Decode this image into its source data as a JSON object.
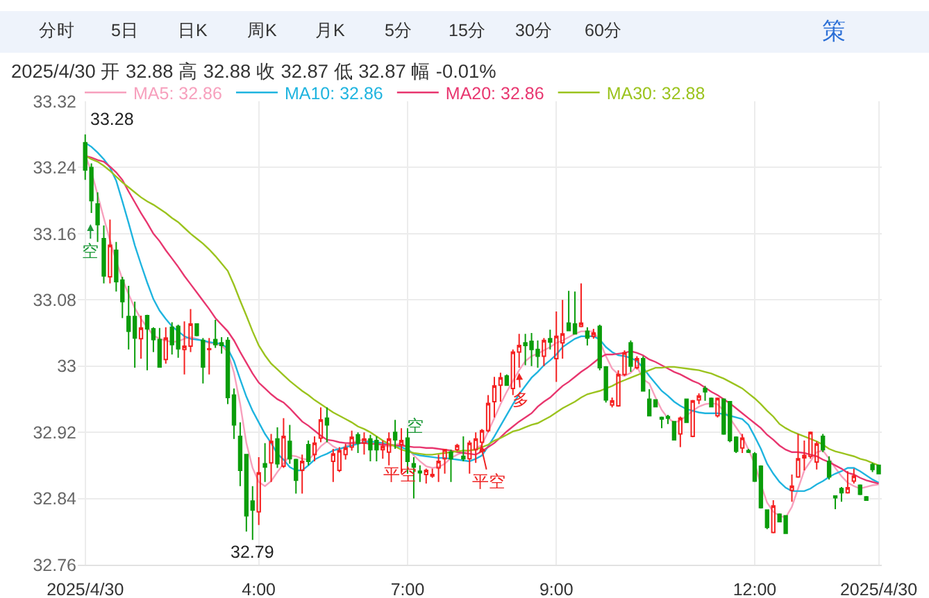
{
  "chart_data": {
    "type": "candlestick",
    "subtitle": "2025/4/30 开 32.88 高 32.88 收 32.87 低 32.87 幅 -0.01%",
    "categories": [
      "2025/4/30",
      null,
      null,
      null,
      null,
      null,
      null,
      null,
      null,
      null,
      null,
      null,
      null,
      null,
      null,
      null,
      null,
      null,
      null,
      null,
      null,
      null,
      null,
      null,
      null,
      null,
      null,
      null,
      "4:00",
      null,
      null,
      null,
      null,
      null,
      null,
      null,
      null,
      null,
      null,
      null,
      null,
      null,
      null,
      null,
      null,
      null,
      null,
      null,
      null,
      null,
      null,
      null,
      "7:00",
      null,
      null,
      null,
      null,
      null,
      null,
      null,
      null,
      null,
      null,
      null,
      null,
      null,
      null,
      null,
      null,
      null,
      null,
      null,
      null,
      null,
      null,
      null,
      "9:00",
      null,
      null,
      null,
      null,
      null,
      null,
      null,
      null,
      null,
      null,
      null,
      null,
      null,
      null,
      null,
      null,
      null,
      null,
      null,
      null,
      null,
      null,
      null,
      null,
      null,
      null,
      null,
      null,
      null,
      null,
      null,
      "12:00",
      null,
      null,
      null,
      null,
      null,
      null,
      null,
      null,
      null,
      null,
      null,
      null,
      null,
      null,
      null,
      null,
      null,
      null,
      null,
      "2025/4/30"
    ],
    "ohlc": [
      [
        33.27,
        33.28,
        33.225,
        33.237
      ],
      [
        33.24,
        33.245,
        33.185,
        33.2
      ],
      [
        33.196,
        33.21,
        33.15,
        33.171
      ],
      [
        33.154,
        33.17,
        33.1,
        33.109
      ],
      [
        33.108,
        33.177,
        33.1,
        33.146
      ],
      [
        33.14,
        33.15,
        33.09,
        33.102
      ],
      [
        33.104,
        33.108,
        33.058,
        33.078
      ],
      [
        33.06,
        33.097,
        33.02,
        33.042
      ],
      [
        33.06,
        33.078,
        32.998,
        33.034
      ],
      [
        33.033,
        33.061,
        33.009,
        33.046
      ],
      [
        33.061,
        33.062,
        32.995,
        33.045
      ],
      [
        33.045,
        33.047,
        33.017,
        33.032
      ],
      [
        33.032,
        33.046,
        32.998,
        32.999
      ],
      [
        33.008,
        33.047,
        33.003,
        33.034
      ],
      [
        33.047,
        33.053,
        33.014,
        33.026
      ],
      [
        33.048,
        33.05,
        33.01,
        33.021
      ],
      [
        33.02,
        33.054,
        32.99,
        33.024
      ],
      [
        33.024,
        33.069,
        33.017,
        33.051
      ],
      [
        33.051,
        33.051,
        33.036,
        33.037
      ],
      [
        33.031,
        33.034,
        32.979,
        32.999
      ],
      [
        33.02,
        33.034,
        32.99,
        33.021
      ],
      [
        33.032,
        33.056,
        33.022,
        33.026
      ],
      [
        33.028,
        33.035,
        33.015,
        33.025
      ],
      [
        33.031,
        33.035,
        32.954,
        32.962
      ],
      [
        32.965,
        32.973,
        32.912,
        32.929
      ],
      [
        32.915,
        32.932,
        32.855,
        32.874
      ],
      [
        32.893,
        32.893,
        32.8,
        32.819
      ],
      [
        32.837,
        32.855,
        32.79,
        32.826
      ],
      [
        32.824,
        32.89,
        32.808,
        32.871
      ],
      [
        32.882,
        32.907,
        32.86,
        32.878
      ],
      [
        32.883,
        32.918,
        32.86,
        32.909
      ],
      [
        32.912,
        32.926,
        32.877,
        32.882
      ],
      [
        32.879,
        32.937,
        32.877,
        32.915
      ],
      [
        32.909,
        32.929,
        32.882,
        32.888
      ],
      [
        32.887,
        32.888,
        32.846,
        32.862
      ],
      [
        32.874,
        32.893,
        32.846,
        32.885
      ],
      [
        32.905,
        32.91,
        32.88,
        32.885
      ],
      [
        32.893,
        32.915,
        32.885,
        32.907
      ],
      [
        32.913,
        32.95,
        32.908,
        32.935
      ],
      [
        32.937,
        32.95,
        32.908,
        32.929
      ],
      [
        32.885,
        32.9,
        32.86,
        32.894
      ],
      [
        32.874,
        32.902,
        32.872,
        32.898
      ],
      [
        32.893,
        32.906,
        32.887,
        32.901
      ],
      [
        32.902,
        32.922,
        32.898,
        32.914
      ],
      [
        32.917,
        32.92,
        32.895,
        32.907
      ],
      [
        32.907,
        32.92,
        32.893,
        32.912
      ],
      [
        32.912,
        32.917,
        32.885,
        32.899
      ],
      [
        32.91,
        32.915,
        32.885,
        32.899
      ],
      [
        32.899,
        32.91,
        32.888,
        32.903
      ],
      [
        32.896,
        32.92,
        32.88,
        32.912
      ],
      [
        32.92,
        32.935,
        32.9,
        32.911
      ],
      [
        32.905,
        32.925,
        32.87,
        32.91
      ],
      [
        32.913,
        32.925,
        32.87,
        32.885
      ],
      [
        32.882,
        32.89,
        32.84,
        32.878
      ],
      [
        32.873,
        32.88,
        32.86,
        32.871
      ],
      [
        32.869,
        32.876,
        32.858,
        32.874
      ],
      [
        32.867,
        32.876,
        32.865,
        32.869
      ],
      [
        32.877,
        32.893,
        32.86,
        32.885
      ],
      [
        32.888,
        32.9,
        32.87,
        32.899
      ],
      [
        32.896,
        32.899,
        32.86,
        32.888
      ],
      [
        32.899,
        32.906,
        32.897,
        32.904
      ],
      [
        32.891,
        32.915,
        32.885,
        32.888
      ],
      [
        32.888,
        32.91,
        32.87,
        32.907
      ],
      [
        32.899,
        32.92,
        32.883,
        32.912
      ],
      [
        32.908,
        32.924,
        32.9,
        32.922
      ],
      [
        32.922,
        32.965,
        32.92,
        32.955
      ],
      [
        32.957,
        32.987,
        32.938,
        32.976
      ],
      [
        32.977,
        32.992,
        32.957,
        32.986
      ],
      [
        32.988,
        32.99,
        32.976,
        32.977
      ],
      [
        32.973,
        33.02,
        32.965,
        33.017
      ],
      [
        33.017,
        33.039,
        32.998,
        33.025
      ],
      [
        33.028,
        33.039,
        33.001,
        33.025
      ],
      [
        33.03,
        33.04,
        33.0,
        33.02
      ],
      [
        33.02,
        33.031,
        32.998,
        33.012
      ],
      [
        33.012,
        33.034,
        33.0,
        33.031
      ],
      [
        33.033,
        33.044,
        33.02,
        33.029
      ],
      [
        33.009,
        33.066,
        32.981,
        33.036
      ],
      [
        33.028,
        33.08,
        33.009,
        33.039
      ],
      [
        33.052,
        33.091,
        33.042,
        33.043
      ],
      [
        33.051,
        33.09,
        33.039,
        33.039
      ],
      [
        33.048,
        33.1,
        33.047,
        33.052
      ],
      [
        33.042,
        33.047,
        33.025,
        33.034
      ],
      [
        33.036,
        33.045,
        33.033,
        33.04
      ],
      [
        33.048,
        33.05,
        32.995,
        32.998
      ],
      [
        32.999,
        33.0,
        32.956,
        32.959
      ],
      [
        32.953,
        32.962,
        32.95,
        32.958
      ],
      [
        32.952,
        32.995,
        32.951,
        32.99
      ],
      [
        32.99,
        33.019,
        32.988,
        33.016
      ],
      [
        33.028,
        33.031,
        32.993,
        33.0
      ],
      [
        32.998,
        33.012,
        32.996,
        33.009
      ],
      [
        33.009,
        33.012,
        32.97,
        32.97
      ],
      [
        32.96,
        32.972,
        32.94,
        32.94
      ],
      [
        32.959,
        32.96,
        32.95,
        32.951
      ],
      [
        32.938,
        32.939,
        32.925,
        32.936
      ],
      [
        32.939,
        32.941,
        32.93,
        32.937
      ],
      [
        32.933,
        32.933,
        32.91,
        32.911
      ],
      [
        32.918,
        32.939,
        32.902,
        32.937
      ],
      [
        32.96,
        32.96,
        32.932,
        32.932
      ],
      [
        32.915,
        32.959,
        32.914,
        32.958
      ],
      [
        32.959,
        32.967,
        32.954,
        32.964
      ],
      [
        32.973,
        32.976,
        32.958,
        32.969
      ],
      [
        32.961,
        32.962,
        32.95,
        32.951
      ],
      [
        32.94,
        32.962,
        32.938,
        32.961
      ],
      [
        32.96,
        32.961,
        32.917,
        32.918
      ],
      [
        32.957,
        32.957,
        32.908,
        32.91
      ],
      [
        32.914,
        32.915,
        32.895,
        32.897
      ],
      [
        32.901,
        32.918,
        32.895,
        32.913
      ],
      [
        32.898,
        32.9,
        32.895,
        32.896
      ],
      [
        32.894,
        32.896,
        32.86,
        32.861
      ],
      [
        32.879,
        32.88,
        32.828,
        32.829
      ],
      [
        32.826,
        32.826,
        32.803,
        32.805
      ],
      [
        32.799,
        32.838,
        32.798,
        32.831
      ],
      [
        32.821,
        32.822,
        32.812,
        32.812
      ],
      [
        32.819,
        32.82,
        32.797,
        32.798
      ],
      [
        32.85,
        32.869,
        32.836,
        32.855
      ],
      [
        32.866,
        32.918,
        32.865,
        32.888
      ],
      [
        32.889,
        32.91,
        32.874,
        32.892
      ],
      [
        32.891,
        32.921,
        32.888,
        32.92
      ],
      [
        32.884,
        32.909,
        32.875,
        32.906
      ],
      [
        32.915,
        32.918,
        32.896,
        32.899
      ],
      [
        32.885,
        32.891,
        32.863,
        32.866
      ],
      [
        32.843,
        32.843,
        32.827,
        32.841
      ],
      [
        32.852,
        32.854,
        32.836,
        32.847
      ],
      [
        32.847,
        32.873,
        32.846,
        32.853
      ],
      [
        32.861,
        32.876,
        32.858,
        32.867
      ],
      [
        32.856,
        32.857,
        32.844,
        32.845
      ],
      [
        32.842,
        32.843,
        32.838,
        32.838
      ],
      [
        32.881,
        32.883,
        32.872,
        32.875
      ],
      [
        32.88,
        32.88,
        32.87,
        32.87
      ]
    ],
    "series": [
      {
        "name": "MA5: 32.86",
        "type": "line",
        "color": "#f7a0bd",
        "values": [
          33.255,
          33.235,
          33.207,
          33.179,
          33.152,
          33.127,
          33.105,
          33.087,
          33.07,
          33.057,
          33.047,
          33.037,
          33.033,
          33.031,
          33.029,
          33.03,
          33.033,
          33.035,
          33.033,
          33.03,
          33.028,
          33.027,
          33.025,
          33.017,
          32.992,
          32.954,
          32.907,
          32.877,
          32.86,
          32.855,
          32.861,
          32.872,
          32.882,
          32.892,
          32.891,
          32.888,
          32.887,
          32.894,
          32.903,
          32.909,
          32.903,
          32.899,
          32.903,
          32.907,
          32.91,
          32.911,
          32.909,
          32.907,
          32.904,
          32.903,
          32.905,
          32.907,
          32.901,
          32.892,
          32.885,
          32.879,
          32.877,
          32.878,
          32.882,
          32.889,
          32.893,
          32.896,
          32.898,
          32.9,
          32.905,
          32.921,
          32.937,
          32.954,
          32.969,
          32.982,
          32.995,
          33.006,
          33.012,
          33.015,
          33.019,
          33.023,
          33.028,
          33.031,
          33.035,
          33.039,
          33.042,
          33.042,
          33.042,
          33.03,
          33.012,
          32.997,
          32.99,
          32.988,
          32.992,
          33.0,
          32.984,
          32.979,
          32.962,
          32.947,
          32.937,
          32.932,
          32.934,
          32.94,
          32.946,
          32.951,
          32.954,
          32.955,
          32.954,
          32.946,
          32.937,
          32.926,
          32.915,
          32.899,
          32.882,
          32.857,
          32.835,
          32.824,
          32.819,
          32.817,
          32.83,
          32.852,
          32.874,
          32.885,
          32.896,
          32.898,
          32.888,
          32.877,
          32.867,
          32.859,
          32.855,
          32.852,
          32.854,
          32.856,
          32.857
        ]
      },
      {
        "name": "MA10: 32.86",
        "type": "line",
        "color": "#1fb4df",
        "values": [
          33.27,
          33.265,
          33.258,
          33.25,
          33.24,
          33.224,
          33.199,
          33.173,
          33.146,
          33.123,
          33.101,
          33.081,
          33.067,
          33.057,
          33.048,
          33.042,
          33.036,
          33.033,
          33.032,
          33.031,
          33.029,
          33.028,
          33.027,
          33.021,
          33.006,
          32.984,
          32.963,
          32.946,
          32.932,
          32.918,
          32.907,
          32.894,
          32.887,
          32.878,
          32.874,
          32.874,
          32.88,
          32.887,
          32.891,
          32.894,
          32.898,
          32.9,
          32.902,
          32.904,
          32.906,
          32.908,
          32.909,
          32.908,
          32.907,
          32.905,
          32.904,
          32.902,
          32.899,
          32.894,
          32.892,
          32.891,
          32.89,
          32.889,
          32.889,
          32.888,
          32.887,
          32.886,
          32.885,
          32.888,
          32.892,
          32.903,
          32.915,
          32.928,
          32.941,
          32.954,
          32.966,
          32.976,
          32.986,
          32.993,
          33.001,
          33.007,
          33.014,
          33.023,
          33.028,
          33.033,
          33.036,
          33.036,
          33.036,
          33.032,
          33.023,
          33.017,
          33.013,
          33.012,
          33.01,
          33.006,
          32.998,
          32.988,
          32.979,
          32.97,
          32.964,
          32.957,
          32.952,
          32.948,
          32.946,
          32.944,
          32.943,
          32.943,
          32.943,
          32.942,
          32.94,
          32.938,
          32.936,
          32.929,
          32.915,
          32.9,
          32.882,
          32.87,
          32.86,
          32.853,
          32.849,
          32.849,
          32.849,
          32.852,
          32.857,
          32.861,
          32.866,
          32.87,
          32.873,
          32.877,
          32.877,
          32.873,
          32.868,
          32.863,
          32.859
        ]
      },
      {
        "name": "MA20: 32.86",
        "type": "line",
        "color": "#e8366f",
        "values": [
          33.254,
          33.252,
          33.249,
          33.247,
          33.241,
          33.234,
          33.225,
          33.211,
          33.198,
          33.185,
          33.173,
          33.16,
          33.151,
          33.14,
          33.13,
          33.12,
          33.109,
          33.099,
          33.089,
          33.079,
          33.069,
          33.058,
          33.05,
          33.042,
          33.031,
          33.017,
          33.004,
          32.991,
          32.98,
          32.973,
          32.966,
          32.96,
          32.956,
          32.949,
          32.941,
          32.933,
          32.928,
          32.922,
          32.916,
          32.911,
          32.91,
          32.908,
          32.907,
          32.907,
          32.907,
          32.907,
          32.906,
          32.906,
          32.905,
          32.905,
          32.904,
          32.904,
          32.903,
          32.902,
          32.902,
          32.901,
          32.901,
          32.9,
          32.899,
          32.898,
          32.896,
          32.895,
          32.894,
          32.893,
          32.897,
          32.902,
          32.907,
          32.914,
          32.921,
          32.927,
          32.933,
          32.938,
          32.943,
          32.951,
          32.957,
          32.962,
          32.969,
          32.976,
          32.981,
          32.987,
          32.993,
          32.998,
          33.004,
          33.01,
          33.014,
          33.014,
          33.015,
          33.016,
          33.018,
          33.016,
          33.013,
          33.008,
          33.005,
          33.001,
          32.997,
          32.993,
          32.99,
          32.986,
          32.982,
          32.979,
          32.974,
          32.969,
          32.965,
          32.96,
          32.955,
          32.949,
          32.943,
          32.937,
          32.931,
          32.925,
          32.917,
          32.911,
          32.904,
          32.899,
          32.896,
          32.896,
          32.895,
          32.893,
          32.891,
          32.887,
          32.884,
          32.88,
          32.876,
          32.871,
          32.869,
          32.865,
          32.862,
          32.86,
          32.858
        ]
      },
      {
        "name": "MA30: 32.88",
        "type": "line",
        "color": "#9bc31e",
        "values": [
          33.254,
          33.25,
          33.247,
          33.242,
          33.236,
          33.229,
          33.222,
          33.216,
          33.21,
          33.204,
          33.199,
          33.195,
          33.19,
          33.185,
          33.179,
          33.174,
          33.167,
          33.16,
          33.154,
          33.148,
          33.141,
          33.133,
          33.124,
          33.115,
          33.098,
          33.079,
          33.061,
          33.042,
          33.025,
          33.013,
          33.003,
          32.996,
          32.989,
          32.982,
          32.976,
          32.97,
          32.965,
          32.959,
          32.954,
          32.949,
          32.944,
          32.94,
          32.936,
          32.932,
          32.927,
          32.924,
          32.92,
          32.915,
          32.91,
          32.906,
          32.903,
          32.899,
          32.897,
          32.895,
          32.894,
          32.893,
          32.893,
          32.894,
          32.895,
          32.896,
          32.897,
          32.898,
          32.898,
          32.899,
          32.902,
          32.905,
          32.91,
          32.913,
          32.917,
          32.921,
          32.923,
          32.926,
          32.929,
          32.931,
          32.935,
          32.939,
          32.944,
          32.949,
          32.953,
          32.957,
          32.962,
          32.966,
          32.968,
          32.97,
          32.973,
          32.976,
          32.98,
          32.983,
          32.986,
          32.989,
          32.992,
          32.995,
          32.998,
          32.998,
          32.999,
          32.999,
          32.998,
          32.997,
          32.996,
          32.995,
          32.993,
          32.991,
          32.988,
          32.985,
          32.981,
          32.977,
          32.973,
          32.967,
          32.961,
          32.954,
          32.946,
          32.939,
          32.93,
          32.925,
          32.921,
          32.918,
          32.915,
          32.912,
          32.909,
          32.905,
          32.9,
          32.897,
          32.895,
          32.893,
          32.891,
          32.888,
          32.886,
          32.883,
          32.88
        ]
      }
    ],
    "ylim": [
      32.76,
      33.32
    ],
    "yticks": [
      32.76,
      32.84,
      32.92,
      33,
      33.08,
      33.16,
      33.24,
      33.32
    ],
    "grid": true,
    "legend": "top left",
    "annotations": [
      "分时",
      "5日",
      "日K",
      "周K",
      "月K",
      "5分",
      "15分",
      "30分",
      "60分",
      "策",
      {
        "text": "33.28",
        "x": "2025/4/30",
        "y": 33.28
      },
      {
        "text": "32.79",
        "y": 32.79
      },
      "空",
      "平空",
      "空",
      "平空",
      "多"
    ]
  }
}
